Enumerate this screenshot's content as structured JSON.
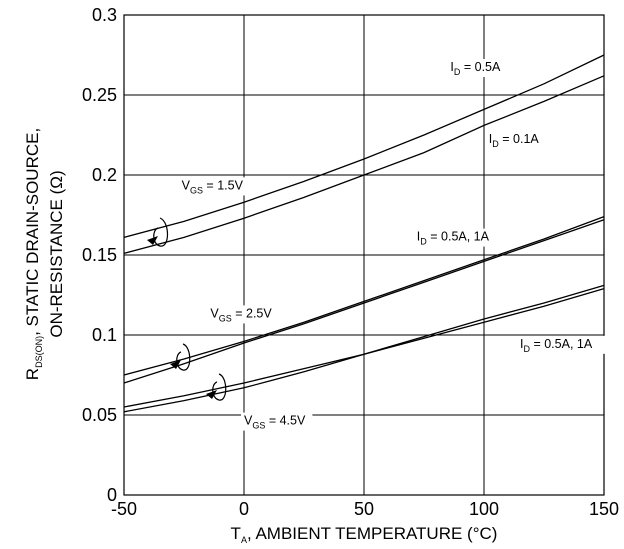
{
  "chart_data": {
    "type": "line",
    "xlabel_main": "T",
    "xlabel_sub": "A",
    "xlabel_rest": ", AMBIENT TEMPERATURE (°C)",
    "ylabel_line1_main": "R",
    "ylabel_line1_sub": "DS(ON)",
    "ylabel_line1_rest": ", STATIC DRAIN-SOURCE,",
    "ylabel_line2": "ON-RESISTANCE (Ω)",
    "xlim": [
      -50,
      150
    ],
    "ylim": [
      0,
      0.3
    ],
    "x_ticks": [
      {
        "v": -50,
        "label": "-50"
      },
      {
        "v": 0,
        "label": "0"
      },
      {
        "v": 50,
        "label": "50"
      },
      {
        "v": 100,
        "label": "100"
      },
      {
        "v": 150,
        "label": "150"
      }
    ],
    "y_ticks": [
      {
        "v": 0,
        "label": "0"
      },
      {
        "v": 0.05,
        "label": "0.05"
      },
      {
        "v": 0.1,
        "label": "0.1"
      },
      {
        "v": 0.15,
        "label": "0.15"
      },
      {
        "v": 0.2,
        "label": "0.2"
      },
      {
        "v": 0.25,
        "label": "0.25"
      },
      {
        "v": 0.3,
        "label": "0.3"
      }
    ],
    "grid": true,
    "series": [
      {
        "x": [
          -50,
          -25,
          0,
          25,
          50,
          75,
          100,
          125,
          150
        ],
        "y": [
          0.161,
          0.171,
          0.183,
          0.196,
          0.21,
          0.225,
          0.241,
          0.257,
          0.275
        ]
      },
      {
        "x": [
          -50,
          -25,
          0,
          25,
          50,
          75,
          100,
          125,
          150
        ],
        "y": [
          0.151,
          0.161,
          0.173,
          0.186,
          0.2,
          0.214,
          0.231,
          0.246,
          0.262
        ]
      },
      {
        "x": [
          -50,
          -25,
          0,
          25,
          50,
          75,
          100,
          125,
          150
        ],
        "y": [
          0.075,
          0.085,
          0.096,
          0.108,
          0.121,
          0.134,
          0.147,
          0.16,
          0.174
        ]
      },
      {
        "x": [
          -50,
          -25,
          0,
          25,
          50,
          75,
          100,
          125,
          150
        ],
        "y": [
          0.07,
          0.082,
          0.095,
          0.107,
          0.12,
          0.133,
          0.146,
          0.159,
          0.172
        ]
      },
      {
        "x": [
          -50,
          -25,
          0,
          25,
          50,
          75,
          100,
          125,
          150
        ],
        "y": [
          0.055,
          0.062,
          0.07,
          0.079,
          0.088,
          0.099,
          0.11,
          0.12,
          0.131
        ]
      },
      {
        "x": [
          -50,
          -25,
          0,
          25,
          50,
          75,
          100,
          125,
          150
        ],
        "y": [
          0.052,
          0.059,
          0.067,
          0.077,
          0.088,
          0.098,
          0.108,
          0.118,
          0.129
        ]
      }
    ],
    "annotations": [
      {
        "main": "I",
        "sub": "D",
        "rest": " = 0.5A",
        "x": 86,
        "y": 0.265
      },
      {
        "main": "I",
        "sub": "D",
        "rest": " = 0.1A",
        "x": 102,
        "y": 0.22
      },
      {
        "main": "V",
        "sub": "GS",
        "rest": " = 1.5V",
        "x": -26,
        "y": 0.191
      },
      {
        "main": "I",
        "sub": "D",
        "rest": " = 0.5A, 1A",
        "x": 72,
        "y": 0.159
      },
      {
        "main": "V",
        "sub": "GS",
        "rest": " = 2.5V",
        "x": -14,
        "y": 0.111
      },
      {
        "main": "I",
        "sub": "D",
        "rest": " = 0.5A, 1A",
        "x": 115,
        "y": 0.092
      },
      {
        "main": "V",
        "sub": "GS",
        "rest": " = 4.5V",
        "x": 0,
        "y": 0.044
      }
    ]
  }
}
